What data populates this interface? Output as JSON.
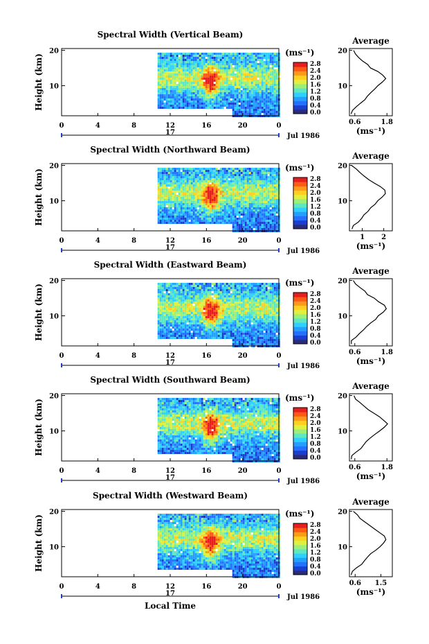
{
  "chart_data": [
    {
      "type": "heatmap",
      "title": "Spectral Width (Vertical Beam)",
      "ylabel": "Height (km)",
      "x_ticks": [
        "0",
        "4",
        "8",
        "12",
        "16",
        "20",
        "0"
      ],
      "y_ticks": [
        "20",
        "10"
      ],
      "date_day": "17",
      "date_label": "Jul 1986",
      "xlim": [
        0,
        24
      ],
      "ylim": [
        1.5,
        20.5
      ],
      "colorbar": {
        "unit": "(ms⁻¹)",
        "ticks": [
          "2.8",
          "2.4",
          "2.0",
          "1.6",
          "1.2",
          "0.8",
          "0.4",
          "0.0"
        ]
      },
      "average_profile": {
        "title": "Average",
        "xlabel": "(ms⁻¹)",
        "x_ticks": [
          "0.6",
          "1.8"
        ],
        "y_ticks": [
          "20",
          "10"
        ],
        "xlim": [
          0.4,
          2.0
        ],
        "height": [
          20,
          19,
          18,
          17,
          16,
          15,
          14,
          13,
          12,
          11,
          10,
          9,
          8,
          7,
          6,
          5,
          4,
          3,
          2
        ],
        "width": [
          0.55,
          0.65,
          0.75,
          0.9,
          1.05,
          1.2,
          1.45,
          1.65,
          1.75,
          1.6,
          1.45,
          1.35,
          1.2,
          1.05,
          0.95,
          0.8,
          0.65,
          0.5,
          0.45
        ]
      }
    },
    {
      "type": "heatmap",
      "title": "Spectral Width (Northward Beam)",
      "ylabel": "Height (km)",
      "x_ticks": [
        "0",
        "4",
        "8",
        "12",
        "16",
        "20",
        "0"
      ],
      "y_ticks": [
        "20",
        "10"
      ],
      "date_day": "17",
      "date_label": "Jul 1986",
      "xlim": [
        0,
        24
      ],
      "ylim": [
        1.5,
        20.5
      ],
      "colorbar": {
        "unit": "(ms⁻¹)",
        "ticks": [
          "2.8",
          "2.4",
          "2.0",
          "1.6",
          "1.2",
          "0.8",
          "0.4",
          "0.0"
        ]
      },
      "average_profile": {
        "title": "Average",
        "xlabel": "(ms⁻¹)",
        "x_ticks": [
          "1",
          "2"
        ],
        "y_ticks": [
          "20",
          "10"
        ],
        "xlim": [
          0.4,
          2.4
        ],
        "height": [
          20,
          19,
          18,
          17,
          16,
          15,
          14,
          13,
          12,
          11,
          10,
          9,
          8,
          7,
          6,
          5,
          4,
          3,
          2
        ],
        "width": [
          0.5,
          0.7,
          0.9,
          1.1,
          1.3,
          1.55,
          1.85,
          2.05,
          2.1,
          1.9,
          1.75,
          1.6,
          1.4,
          1.25,
          1.1,
          0.95,
          0.8,
          0.6,
          0.5
        ]
      }
    },
    {
      "type": "heatmap",
      "title": "Spectral Width (Eastward Beam)",
      "ylabel": "Height (km)",
      "x_ticks": [
        "0",
        "4",
        "8",
        "12",
        "16",
        "20",
        "0"
      ],
      "y_ticks": [
        "20",
        "10"
      ],
      "date_day": "17",
      "date_label": "Jul 1986",
      "xlim": [
        0,
        24
      ],
      "ylim": [
        1.5,
        20.5
      ],
      "colorbar": {
        "unit": "(ms⁻¹)",
        "ticks": [
          "2.8",
          "2.4",
          "2.0",
          "1.6",
          "1.2",
          "0.8",
          "0.4",
          "0.0"
        ]
      },
      "average_profile": {
        "title": "Average",
        "xlabel": "(ms⁻¹)",
        "x_ticks": [
          "0.6",
          "1.8"
        ],
        "y_ticks": [
          "20",
          "10"
        ],
        "xlim": [
          0.4,
          2.0
        ],
        "height": [
          20,
          19,
          18,
          17,
          16,
          15,
          14,
          13,
          12,
          11,
          10,
          9,
          8,
          7,
          6,
          5,
          4,
          3,
          2
        ],
        "width": [
          0.55,
          0.65,
          0.8,
          0.95,
          1.1,
          1.3,
          1.5,
          1.7,
          1.8,
          1.65,
          1.5,
          1.35,
          1.2,
          1.05,
          0.9,
          0.8,
          0.65,
          0.5,
          0.45
        ]
      }
    },
    {
      "type": "heatmap",
      "title": "Spectral Width (Southward Beam)",
      "ylabel": "Height (km)",
      "x_ticks": [
        "0",
        "4",
        "8",
        "12",
        "16",
        "20",
        "0"
      ],
      "y_ticks": [
        "20",
        "10"
      ],
      "date_day": "17",
      "date_label": "Jul 1986",
      "xlim": [
        0,
        24
      ],
      "ylim": [
        1.5,
        20.5
      ],
      "colorbar": {
        "unit": "(ms⁻¹)",
        "ticks": [
          "2.8",
          "2.4",
          "2.0",
          "1.6",
          "1.2",
          "0.8",
          "0.4",
          "0.0"
        ]
      },
      "average_profile": {
        "title": "Average",
        "xlabel": "(ms⁻¹)",
        "x_ticks": [
          "0.6",
          "1.8"
        ],
        "y_ticks": [
          "20",
          "10"
        ],
        "xlim": [
          0.4,
          2.0
        ],
        "height": [
          20,
          19,
          18,
          17,
          16,
          15,
          14,
          13,
          12,
          11,
          10,
          9,
          8,
          7,
          6,
          5,
          4,
          3,
          2
        ],
        "width": [
          0.55,
          0.65,
          0.8,
          0.95,
          1.1,
          1.3,
          1.5,
          1.7,
          1.8,
          1.7,
          1.5,
          1.35,
          1.2,
          1.05,
          0.9,
          0.8,
          0.65,
          0.5,
          0.45
        ]
      }
    },
    {
      "type": "heatmap",
      "title": "Spectral Width (Westward Beam)",
      "ylabel": "Height (km)",
      "xlabel": "Local Time",
      "x_ticks": [
        "0",
        "4",
        "8",
        "12",
        "16",
        "20",
        "0"
      ],
      "y_ticks": [
        "20",
        "10"
      ],
      "date_day": "17",
      "date_label": "Jul 1986",
      "xlim": [
        0,
        24
      ],
      "ylim": [
        1.5,
        20.5
      ],
      "colorbar": {
        "unit": "(ms⁻¹)",
        "ticks": [
          "2.8",
          "2.4",
          "2.0",
          "1.6",
          "1.2",
          "0.8",
          "0.4",
          "0.0"
        ]
      },
      "average_profile": {
        "title": "Average",
        "xlabel": "(ms⁻¹)",
        "x_ticks": [
          "0.6",
          "1.5"
        ],
        "y_ticks": [
          "20",
          "10"
        ],
        "xlim": [
          0.4,
          1.9
        ],
        "height": [
          20,
          19,
          18,
          17,
          16,
          15,
          14,
          13,
          12,
          11,
          10,
          9,
          8,
          7,
          6,
          5,
          4,
          3,
          2
        ],
        "width": [
          0.55,
          0.65,
          0.8,
          0.95,
          1.1,
          1.25,
          1.45,
          1.6,
          1.7,
          1.6,
          1.45,
          1.3,
          1.15,
          1.0,
          0.9,
          0.8,
          0.65,
          0.5,
          0.45
        ]
      }
    }
  ]
}
